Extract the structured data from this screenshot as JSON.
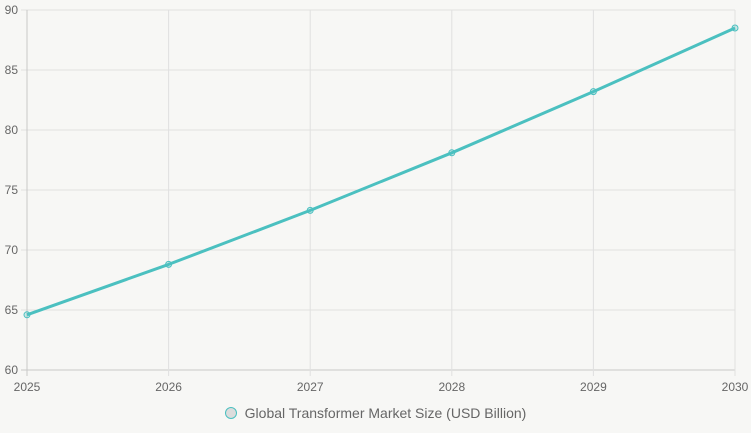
{
  "chart_data": {
    "type": "line",
    "title": "",
    "xlabel": "",
    "ylabel": "",
    "categories": [
      "2025",
      "2026",
      "2027",
      "2028",
      "2029",
      "2030"
    ],
    "series": [
      {
        "name": "Global Transformer Market Size (USD Billion)",
        "values": [
          64.6,
          68.8,
          73.3,
          78.1,
          83.2,
          88.5
        ],
        "color": "#4bc0c0"
      }
    ],
    "ylim": [
      60,
      90
    ],
    "yticks": [
      60,
      65,
      70,
      75,
      80,
      85,
      90
    ],
    "grid": true,
    "legend_position": "bottom"
  },
  "legend": {
    "label": "Global Transformer Market Size (USD Billion)"
  }
}
